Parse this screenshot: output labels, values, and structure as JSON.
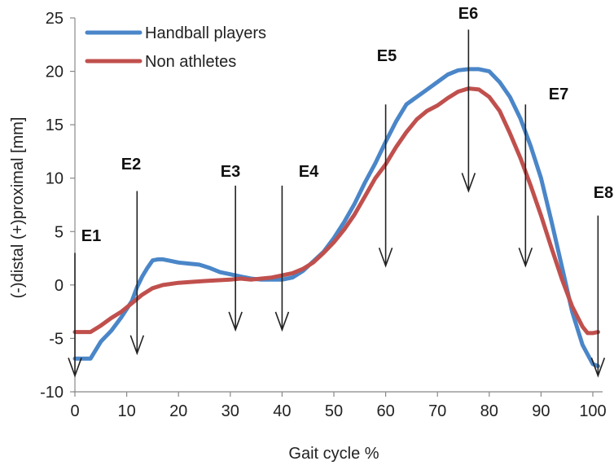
{
  "chart_data": {
    "type": "line",
    "title": "",
    "xlabel": "Gait cycle %",
    "ylabel": "(-)distal (+)proximal [mm]",
    "xlim": [
      0,
      100
    ],
    "ylim": [
      -10,
      25
    ],
    "xticks": [
      0,
      10,
      20,
      30,
      40,
      50,
      60,
      70,
      80,
      90,
      100
    ],
    "yticks": [
      -10,
      -5,
      0,
      5,
      10,
      15,
      20,
      25
    ],
    "grid": false,
    "legend_position": "top-left",
    "series": [
      {
        "name": "Handball players",
        "color": "#4a86c8",
        "x": [
          0,
          1,
          3,
          5,
          7,
          9,
          11,
          12,
          13,
          14,
          15,
          16,
          17,
          18,
          20,
          22,
          24,
          26,
          28,
          30,
          32,
          34,
          36,
          38,
          40,
          42,
          44,
          46,
          48,
          50,
          52,
          54,
          56,
          58,
          60,
          62,
          64,
          66,
          68,
          70,
          72,
          74,
          76,
          78,
          80,
          82,
          84,
          86,
          88,
          90,
          92,
          94,
          96,
          98,
          100,
          101
        ],
        "values": [
          -6.9,
          -6.9,
          -6.9,
          -5.3,
          -4.3,
          -3.0,
          -1.5,
          -0.2,
          0.8,
          1.6,
          2.3,
          2.4,
          2.4,
          2.3,
          2.1,
          2.0,
          1.9,
          1.6,
          1.2,
          1.0,
          0.8,
          0.6,
          0.5,
          0.5,
          0.5,
          0.7,
          1.3,
          2.2,
          3.1,
          4.4,
          5.9,
          7.6,
          9.6,
          11.4,
          13.4,
          15.3,
          16.9,
          17.6,
          18.3,
          19.0,
          19.7,
          20.1,
          20.2,
          20.2,
          20.0,
          19.0,
          17.6,
          15.6,
          13.0,
          10.0,
          6.0,
          1.8,
          -2.5,
          -5.6,
          -7.4,
          -7.6
        ]
      },
      {
        "name": "Non athletes",
        "color": "#c0504d",
        "x": [
          0,
          1,
          3,
          5,
          7,
          9,
          11,
          13,
          15,
          17,
          20,
          23,
          26,
          30,
          32,
          34,
          36,
          38,
          40,
          42,
          44,
          46,
          48,
          50,
          52,
          54,
          56,
          58,
          60,
          62,
          64,
          66,
          68,
          70,
          72,
          74,
          76,
          78,
          80,
          82,
          84,
          86,
          88,
          90,
          92,
          94,
          96,
          98,
          99,
          100,
          101
        ],
        "values": [
          -4.4,
          -4.4,
          -4.4,
          -3.8,
          -3.1,
          -2.5,
          -1.7,
          -0.9,
          -0.3,
          0.0,
          0.2,
          0.3,
          0.4,
          0.5,
          0.6,
          0.5,
          0.6,
          0.7,
          0.9,
          1.1,
          1.5,
          2.1,
          3.0,
          4.0,
          5.2,
          6.6,
          8.3,
          10.0,
          11.3,
          12.9,
          14.3,
          15.5,
          16.3,
          16.8,
          17.5,
          18.1,
          18.4,
          18.3,
          17.6,
          16.3,
          14.2,
          11.9,
          9.3,
          6.5,
          3.5,
          0.6,
          -2.0,
          -3.9,
          -4.5,
          -4.5,
          -4.4
        ]
      }
    ],
    "events": [
      {
        "label": "E1",
        "x": 0,
        "y_top": 3.0,
        "y_bottom": -8.5
      },
      {
        "label": "E2",
        "x": 12,
        "y_top": 8.8,
        "y_bottom": -6.4
      },
      {
        "label": "E3",
        "x": 31,
        "y_top": 9.3,
        "y_bottom": -4.2
      },
      {
        "label": "E4",
        "x": 40,
        "y_top": 9.3,
        "y_bottom": -4.2
      },
      {
        "label": "E5",
        "x": 60,
        "y_top": 16.9,
        "y_bottom": 1.8
      },
      {
        "label": "E6",
        "x": 76,
        "y_top": 23.9,
        "y_bottom": 8.8
      },
      {
        "label": "E7",
        "x": 87,
        "y_top": 16.9,
        "y_bottom": 1.8
      },
      {
        "label": "E8",
        "x": 101,
        "y_top": 6.5,
        "y_bottom": -8.5
      }
    ]
  }
}
